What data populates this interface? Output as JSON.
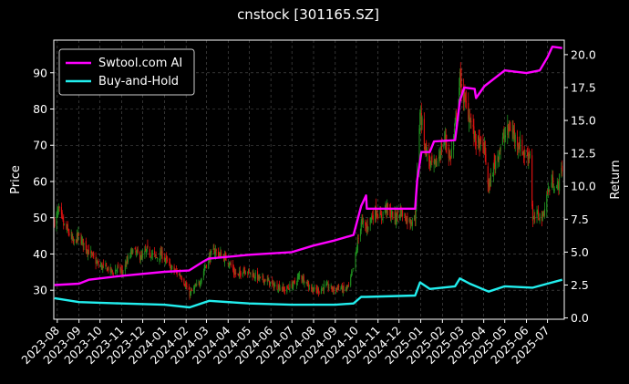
{
  "chart_data": {
    "type": "line",
    "title": "cnstock [301165.SZ]",
    "ylabel": "Price",
    "y2label": "Return",
    "ylim": [
      22,
      99
    ],
    "y2lim": [
      -0.1,
      21.1
    ],
    "yticks": [
      30,
      40,
      50,
      60,
      70,
      80,
      90
    ],
    "y2ticks": [
      0.0,
      2.5,
      5.0,
      7.5,
      10.0,
      12.5,
      15.0,
      17.5,
      20.0
    ],
    "y2tick_labels": [
      "0.0",
      "2.5",
      "5.0",
      "7.5",
      "10.0",
      "12.5",
      "15.0",
      "17.5",
      "20.0"
    ],
    "x_range": [
      "2023-07-27",
      "2025-07-25"
    ],
    "x_ticks": [
      "2023-08",
      "2023-09",
      "2023-10",
      "2023-11",
      "2023-12",
      "2024-01",
      "2024-02",
      "2024-03",
      "2024-04",
      "2024-05",
      "2024-06",
      "2024-07",
      "2024-08",
      "2024-09",
      "2024-10",
      "2024-11",
      "2024-12",
      "2025-01",
      "2025-02",
      "2025-03",
      "2025-04",
      "2025-05",
      "2025-06",
      "2025-07"
    ],
    "grid": true,
    "legend_position": "top-left",
    "colors": {
      "up": "#1f8f1f",
      "down": "#dd1111",
      "strategy": "#ff00ff",
      "buyhold": "#22eeee",
      "grid": "#555555",
      "background": "#000000"
    },
    "price_series": {
      "name": "Price",
      "points": [
        [
          "2023-07-28",
          49
        ],
        [
          "2023-08-03",
          52
        ],
        [
          "2023-08-10",
          48
        ],
        [
          "2023-08-17",
          46
        ],
        [
          "2023-08-24",
          43
        ],
        [
          "2023-08-31",
          45
        ],
        [
          "2023-09-07",
          43
        ],
        [
          "2023-09-14",
          41
        ],
        [
          "2023-09-21",
          39
        ],
        [
          "2023-09-28",
          37
        ],
        [
          "2023-10-12",
          36
        ],
        [
          "2023-10-19",
          35
        ],
        [
          "2023-10-26",
          36
        ],
        [
          "2023-11-02",
          35
        ],
        [
          "2023-11-09",
          38
        ],
        [
          "2023-11-16",
          41
        ],
        [
          "2023-11-23",
          40
        ],
        [
          "2023-11-30",
          39
        ],
        [
          "2023-12-07",
          41
        ],
        [
          "2023-12-14",
          40
        ],
        [
          "2023-12-21",
          39
        ],
        [
          "2023-12-28",
          40
        ],
        [
          "2024-01-04",
          38
        ],
        [
          "2024-01-11",
          36
        ],
        [
          "2024-01-18",
          35
        ],
        [
          "2024-01-25",
          34
        ],
        [
          "2024-02-01",
          31
        ],
        [
          "2024-02-06",
          29
        ],
        [
          "2024-02-20",
          32
        ],
        [
          "2024-02-27",
          36
        ],
        [
          "2024-03-05",
          39
        ],
        [
          "2024-03-12",
          41
        ],
        [
          "2024-03-19",
          40
        ],
        [
          "2024-03-26",
          39
        ],
        [
          "2024-04-02",
          38
        ],
        [
          "2024-04-09",
          35
        ],
        [
          "2024-04-16",
          34
        ],
        [
          "2024-04-23",
          36
        ],
        [
          "2024-04-30",
          35
        ],
        [
          "2024-05-10",
          34
        ],
        [
          "2024-05-17",
          33
        ],
        [
          "2024-05-24",
          33
        ],
        [
          "2024-05-31",
          32
        ],
        [
          "2024-06-07",
          31
        ],
        [
          "2024-06-14",
          31
        ],
        [
          "2024-06-21",
          30
        ],
        [
          "2024-06-28",
          31
        ],
        [
          "2024-07-05",
          32
        ],
        [
          "2024-07-12",
          34
        ],
        [
          "2024-07-19",
          33
        ],
        [
          "2024-07-26",
          31
        ],
        [
          "2024-08-02",
          30
        ],
        [
          "2024-08-09",
          30
        ],
        [
          "2024-08-16",
          31
        ],
        [
          "2024-08-23",
          31
        ],
        [
          "2024-08-30",
          30
        ],
        [
          "2024-09-06",
          31
        ],
        [
          "2024-09-13",
          30
        ],
        [
          "2024-09-20",
          31
        ],
        [
          "2024-09-27",
          36
        ],
        [
          "2024-10-08",
          49
        ],
        [
          "2024-10-15",
          47
        ],
        [
          "2024-10-22",
          50
        ],
        [
          "2024-10-29",
          52
        ],
        [
          "2024-11-05",
          50
        ],
        [
          "2024-11-12",
          53
        ],
        [
          "2024-11-19",
          51
        ],
        [
          "2024-11-26",
          50
        ],
        [
          "2024-12-03",
          52
        ],
        [
          "2024-12-10",
          50
        ],
        [
          "2024-12-17",
          49
        ],
        [
          "2024-12-24",
          50
        ],
        [
          "2024-12-27",
          62
        ],
        [
          "2024-12-31",
          80
        ],
        [
          "2025-01-07",
          70
        ],
        [
          "2025-01-14",
          65
        ],
        [
          "2025-01-21",
          64
        ],
        [
          "2025-02-05",
          72
        ],
        [
          "2025-02-12",
          66
        ],
        [
          "2025-02-19",
          75
        ],
        [
          "2025-02-26",
          88
        ],
        [
          "2025-03-05",
          82
        ],
        [
          "2025-03-12",
          78
        ],
        [
          "2025-03-19",
          72
        ],
        [
          "2025-03-26",
          70
        ],
        [
          "2025-04-02",
          69
        ],
        [
          "2025-04-08",
          58
        ],
        [
          "2025-04-15",
          64
        ],
        [
          "2025-04-22",
          68
        ],
        [
          "2025-04-29",
          72
        ],
        [
          "2025-05-09",
          75
        ],
        [
          "2025-05-16",
          72
        ],
        [
          "2025-05-23",
          70
        ],
        [
          "2025-05-30",
          67
        ],
        [
          "2025-06-06",
          68
        ],
        [
          "2025-06-10",
          49
        ],
        [
          "2025-06-17",
          51
        ],
        [
          "2025-06-24",
          50
        ],
        [
          "2025-07-01",
          57
        ],
        [
          "2025-07-08",
          60
        ],
        [
          "2025-07-15",
          58
        ],
        [
          "2025-07-22",
          64
        ]
      ]
    },
    "series": [
      {
        "name": "Swtool.com AI",
        "axis": "right",
        "points": [
          [
            "2023-07-28",
            2.5
          ],
          [
            "2023-09-01",
            2.6
          ],
          [
            "2023-09-15",
            2.9
          ],
          [
            "2023-11-01",
            3.2
          ],
          [
            "2024-01-01",
            3.5
          ],
          [
            "2024-02-05",
            3.6
          ],
          [
            "2024-02-26",
            4.3
          ],
          [
            "2024-03-04",
            4.5
          ],
          [
            "2024-05-01",
            4.8
          ],
          [
            "2024-07-01",
            5.0
          ],
          [
            "2024-08-01",
            5.5
          ],
          [
            "2024-09-01",
            5.9
          ],
          [
            "2024-09-27",
            6.3
          ],
          [
            "2024-10-08",
            8.5
          ],
          [
            "2024-10-15",
            9.3
          ],
          [
            "2024-10-16",
            8.3
          ],
          [
            "2024-12-24",
            8.3
          ],
          [
            "2024-12-27",
            10.5
          ],
          [
            "2025-01-02",
            12.6
          ],
          [
            "2025-01-14",
            12.6
          ],
          [
            "2025-01-20",
            13.4
          ],
          [
            "2025-02-19",
            13.5
          ],
          [
            "2025-02-26",
            16.5
          ],
          [
            "2025-03-04",
            17.5
          ],
          [
            "2025-03-19",
            17.4
          ],
          [
            "2025-03-21",
            16.7
          ],
          [
            "2025-04-02",
            17.6
          ],
          [
            "2025-05-01",
            18.8
          ],
          [
            "2025-06-01",
            18.6
          ],
          [
            "2025-06-20",
            18.8
          ],
          [
            "2025-07-01",
            19.8
          ],
          [
            "2025-07-08",
            20.6
          ],
          [
            "2025-07-22",
            20.5
          ]
        ]
      },
      {
        "name": "Buy-and-Hold",
        "axis": "right",
        "points": [
          [
            "2023-07-28",
            1.5
          ],
          [
            "2023-09-01",
            1.2
          ],
          [
            "2023-11-01",
            1.1
          ],
          [
            "2024-01-01",
            1.0
          ],
          [
            "2024-02-06",
            0.8
          ],
          [
            "2024-03-05",
            1.3
          ],
          [
            "2024-05-01",
            1.1
          ],
          [
            "2024-07-01",
            1.0
          ],
          [
            "2024-09-01",
            1.0
          ],
          [
            "2024-09-27",
            1.1
          ],
          [
            "2024-10-08",
            1.6
          ],
          [
            "2024-10-15",
            1.6
          ],
          [
            "2024-12-24",
            1.7
          ],
          [
            "2024-12-31",
            2.7
          ],
          [
            "2025-01-14",
            2.2
          ],
          [
            "2025-02-19",
            2.4
          ],
          [
            "2025-02-26",
            3.0
          ],
          [
            "2025-03-12",
            2.6
          ],
          [
            "2025-04-08",
            2.0
          ],
          [
            "2025-05-01",
            2.4
          ],
          [
            "2025-06-10",
            2.3
          ],
          [
            "2025-07-01",
            2.6
          ],
          [
            "2025-07-22",
            2.9
          ]
        ]
      }
    ]
  }
}
